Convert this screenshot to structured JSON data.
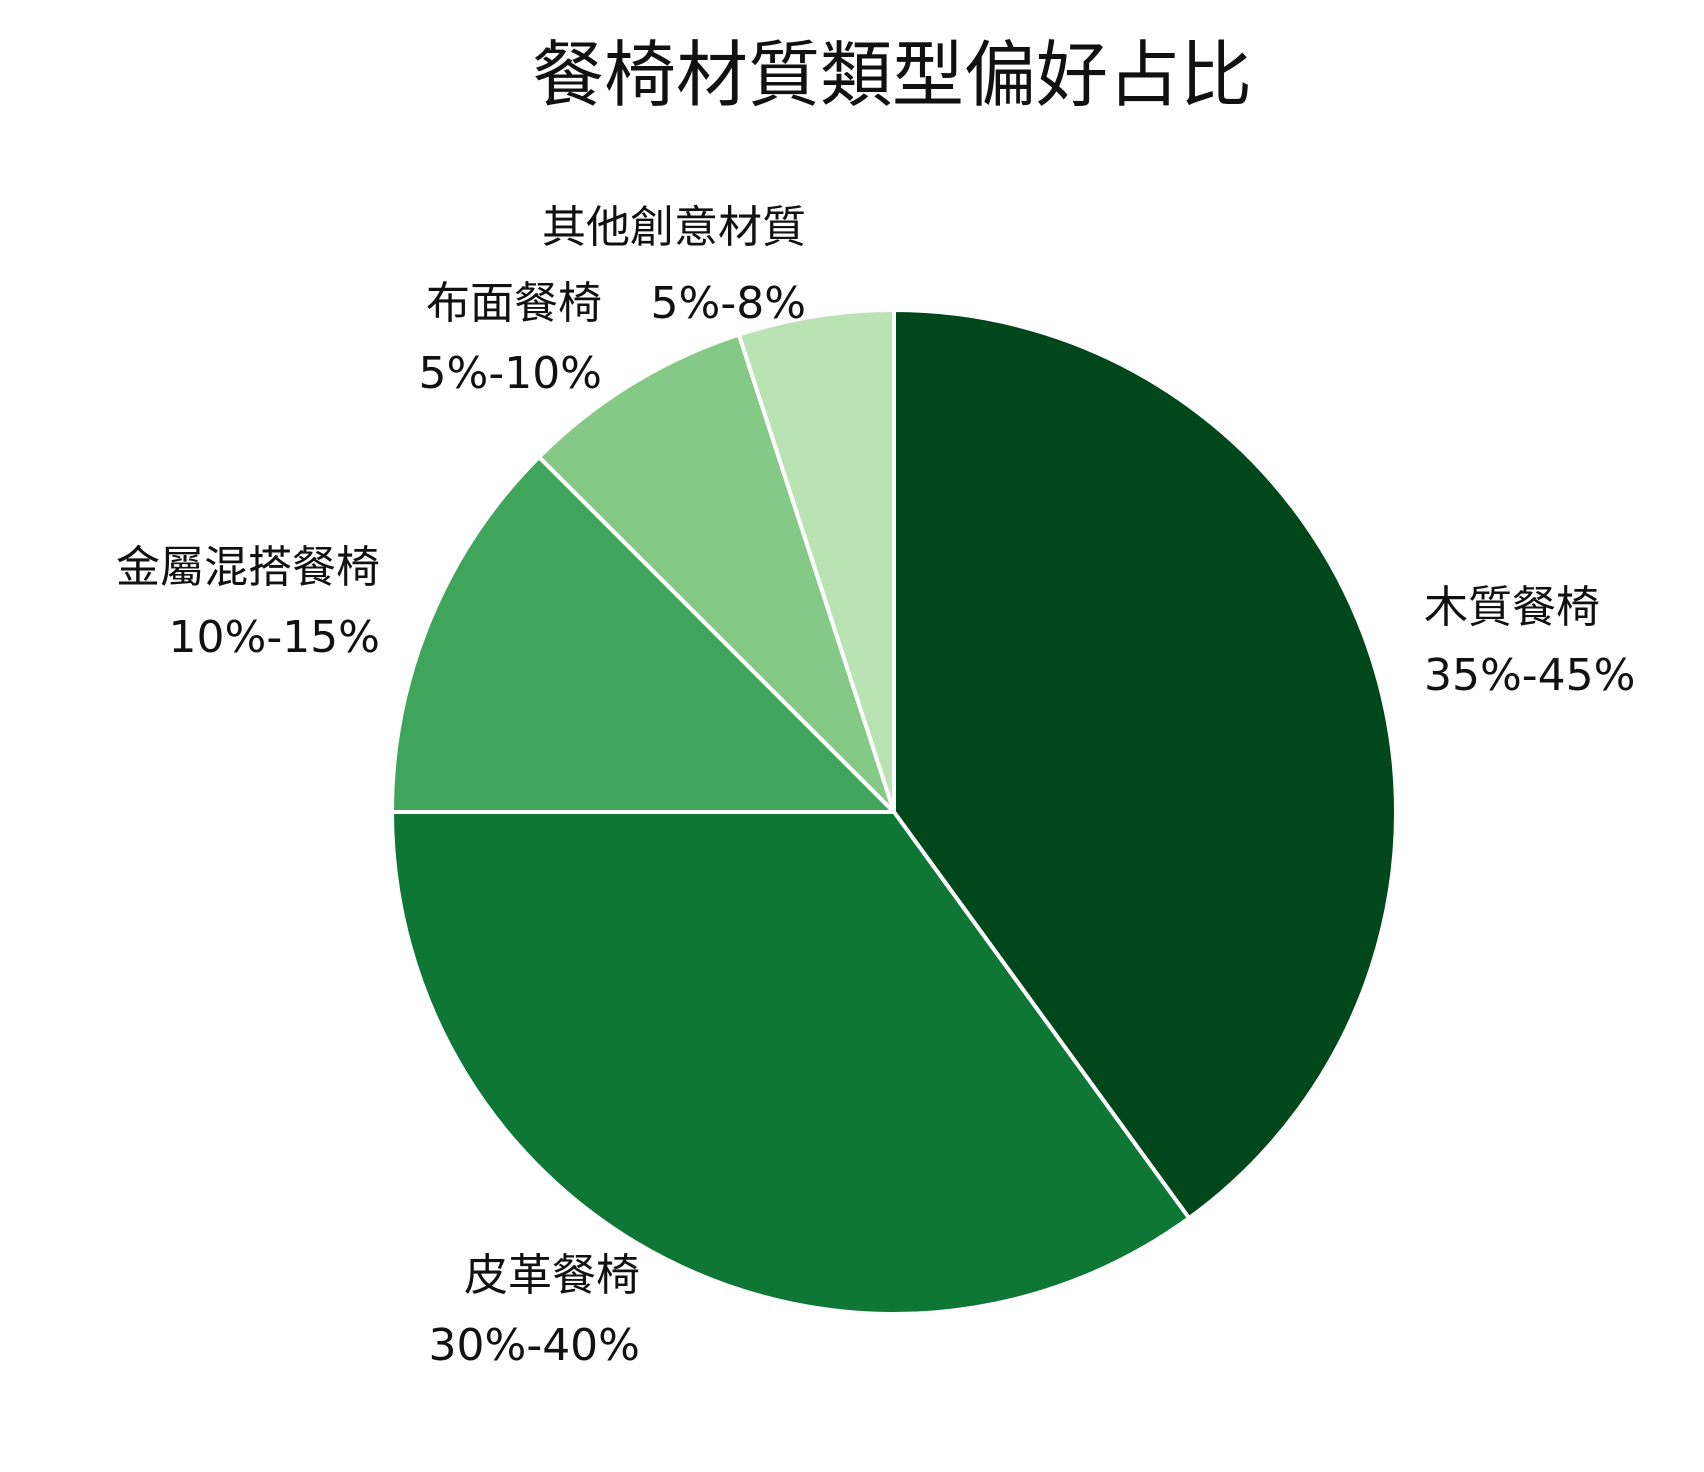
{
  "chart_data": {
    "type": "pie",
    "title": "餐椅材質類型偏好占比",
    "slices": [
      {
        "name": "木質餐椅",
        "range": "35%-45%",
        "value": 40,
        "color": "#00471b"
      },
      {
        "name": "皮革餐椅",
        "range": "30%-40%",
        "value": 35,
        "color": "#0e7735"
      },
      {
        "name": "金屬混搭餐椅",
        "range": "10%-15%",
        "value": 12.5,
        "color": "#3fa55b"
      },
      {
        "name": "布面餐椅",
        "range": "5%-10%",
        "value": 7.5,
        "color": "#84c985"
      },
      {
        "name": "其他創意材質",
        "range": "5%-8%",
        "value": 5,
        "color": "#bae3b3"
      }
    ],
    "legend": "none",
    "start_angle": "top",
    "direction": "clockwise"
  }
}
